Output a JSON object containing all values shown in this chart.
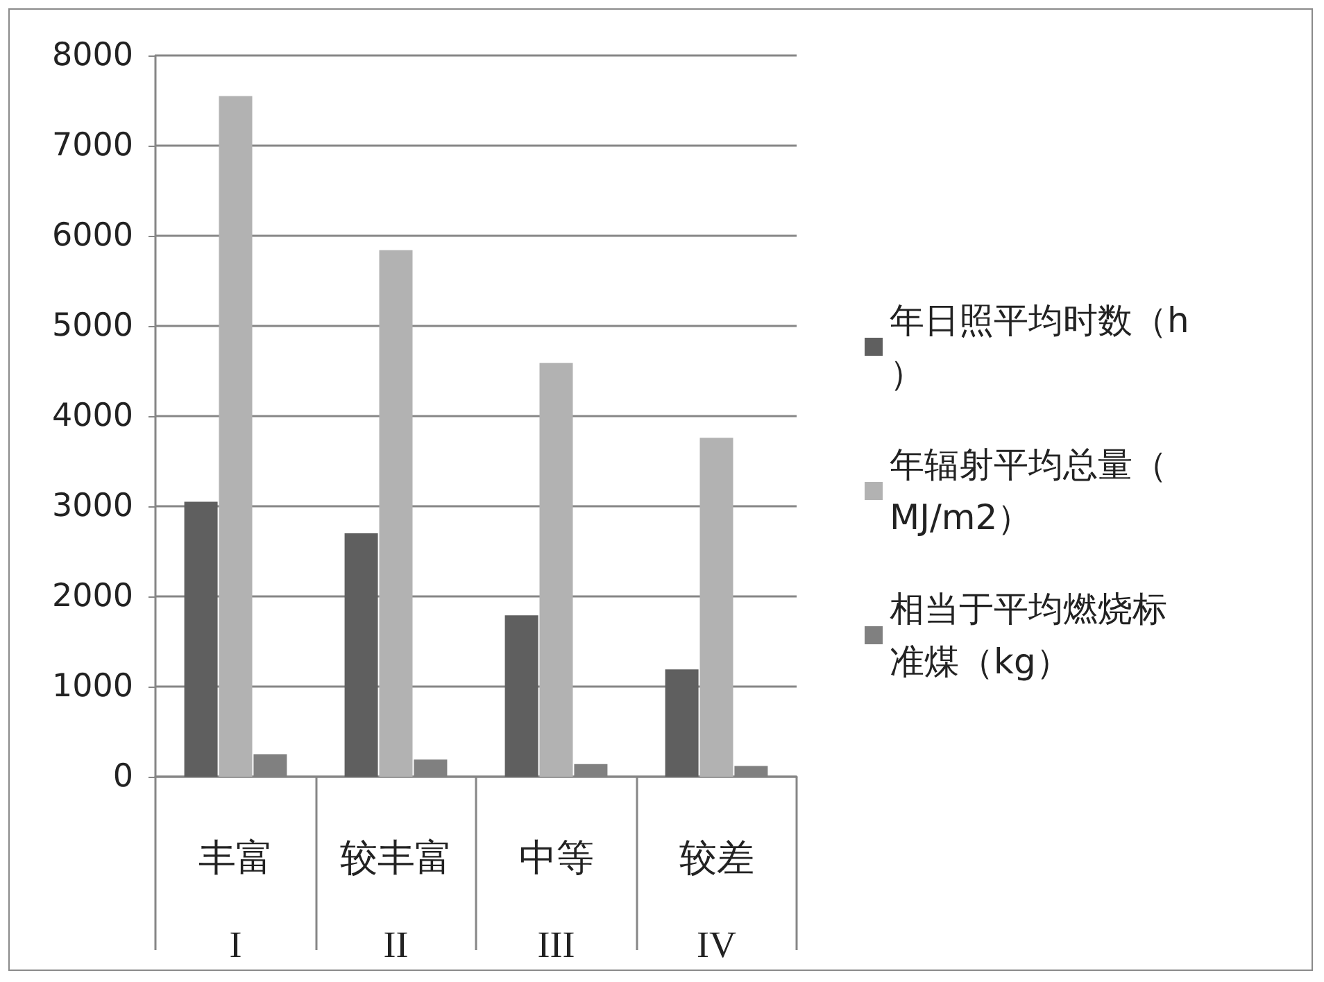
{
  "chart_data": {
    "type": "bar",
    "categories": [
      "丰富\nI",
      "较丰富\nII",
      "中等\nIII",
      "较差\nIV"
    ],
    "series": [
      {
        "name": "年日照平均时数（h）",
        "color": "#5f5f5f",
        "values": [
          3050,
          2700,
          1790,
          1190
        ]
      },
      {
        "name": "年辐射平均总量（MJ/m2）",
        "color": "#b2b2b2",
        "values": [
          7550,
          5840,
          4590,
          3760
        ]
      },
      {
        "name": "相当于平均燃烧标准煤（kg）",
        "color": "#808080",
        "values": [
          250,
          190,
          140,
          120
        ]
      }
    ],
    "ylim": [
      0,
      8000
    ],
    "yticks": [
      0,
      1000,
      2000,
      3000,
      4000,
      5000,
      6000,
      7000,
      8000
    ],
    "grid": "y",
    "legend": "right"
  }
}
